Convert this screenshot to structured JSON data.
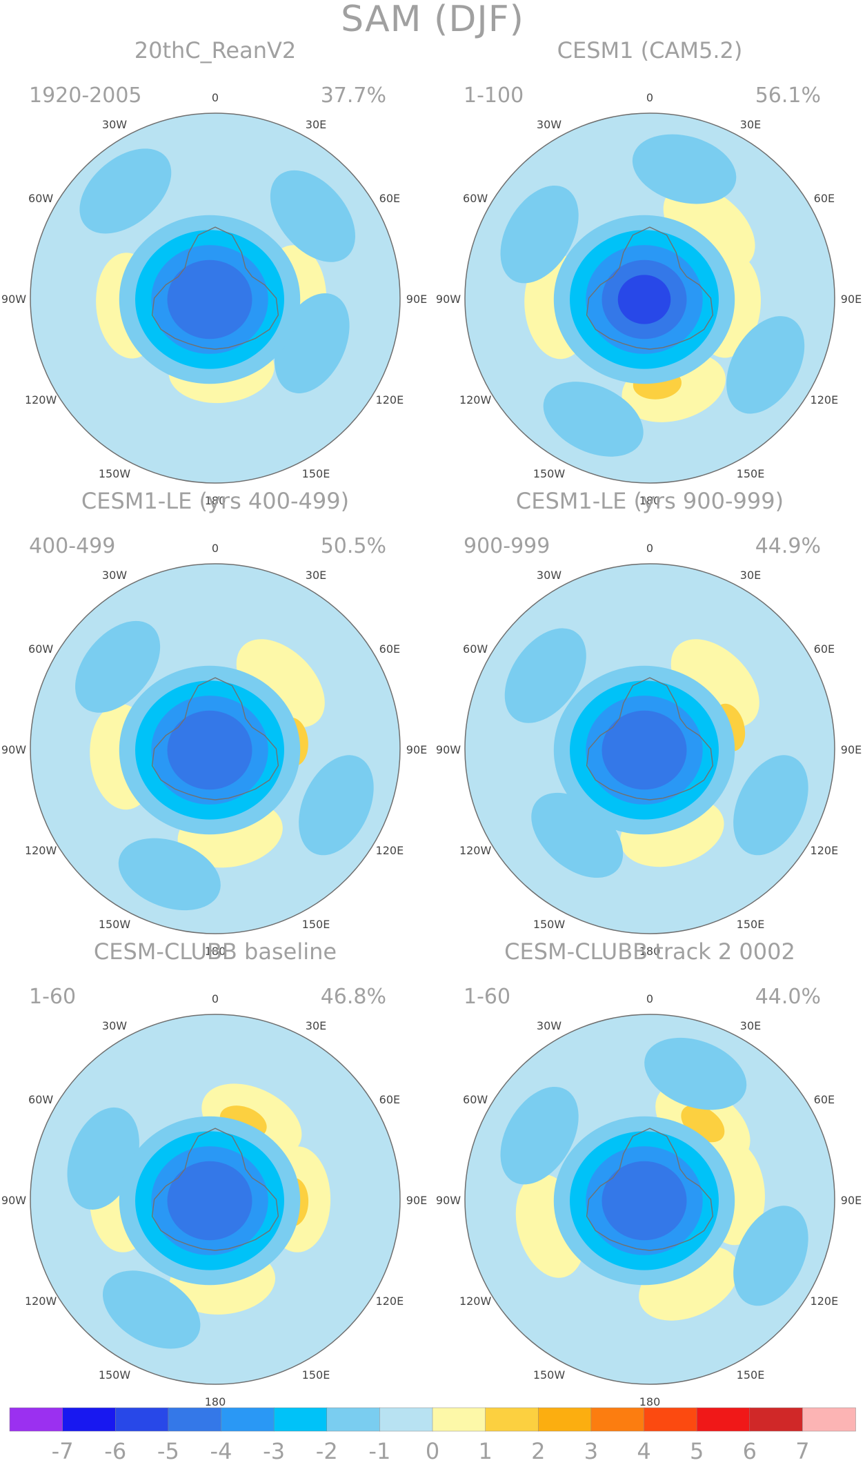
{
  "title": "SAM (DJF)",
  "colors": {
    "text": "#a0a0a0",
    "coast": "#707070",
    "border": "#6e6e6e"
  },
  "meridian_labels": [
    "0",
    "30E",
    "60E",
    "90E",
    "120E",
    "150E",
    "180",
    "150W",
    "120W",
    "90W",
    "60W",
    "30W"
  ],
  "panels": [
    {
      "name": "20thC_ReanV2",
      "period": "1920-2005",
      "variance": "37.7%",
      "core_value": -4,
      "features": [
        {
          "value": 1,
          "lon": 90,
          "lat": -52
        },
        {
          "value": 1,
          "lon": -95,
          "lat": -48
        },
        {
          "value": 1,
          "lon": 175,
          "lat": -55
        },
        {
          "value": -1,
          "lon": 50,
          "lat": -28
        },
        {
          "value": -1,
          "lon": 115,
          "lat": -38
        },
        {
          "value": -1,
          "lon": -40,
          "lat": -22
        }
      ]
    },
    {
      "name": "CESM1 (CAM5.2)",
      "period": "1-100",
      "variance": "56.1%",
      "core_value": -5,
      "features": [
        {
          "value": 1,
          "lon": 40,
          "lat": -45
        },
        {
          "value": 2,
          "lon": 85,
          "lat": -50
        },
        {
          "value": 1,
          "lon": 95,
          "lat": -52
        },
        {
          "value": 1,
          "lon": 165,
          "lat": -45
        },
        {
          "value": 2,
          "lon": 175,
          "lat": -48
        },
        {
          "value": 1,
          "lon": -95,
          "lat": -45
        },
        {
          "value": -1,
          "lon": 120,
          "lat": -25
        },
        {
          "value": -1,
          "lon": -155,
          "lat": -25
        },
        {
          "value": -1,
          "lon": -60,
          "lat": -28
        },
        {
          "value": -1,
          "lon": 15,
          "lat": -25
        }
      ]
    },
    {
      "name": "CESM1-LE (yrs 400-499)",
      "period": "400-499",
      "variance": "50.5%",
      "core_value": -4,
      "features": [
        {
          "value": 1,
          "lon": 45,
          "lat": -45
        },
        {
          "value": 2,
          "lon": 85,
          "lat": -52
        },
        {
          "value": 1,
          "lon": 170,
          "lat": -48
        },
        {
          "value": 1,
          "lon": -95,
          "lat": -45
        },
        {
          "value": -1,
          "lon": 115,
          "lat": -25
        },
        {
          "value": -1,
          "lon": -160,
          "lat": -25
        },
        {
          "value": -1,
          "lon": -50,
          "lat": -28
        }
      ]
    },
    {
      "name": "CESM1-LE (yrs 900-999)",
      "period": "900-999",
      "variance": "44.9%",
      "core_value": -4,
      "features": [
        {
          "value": 1,
          "lon": 45,
          "lat": -45
        },
        {
          "value": 2,
          "lon": 75,
          "lat": -50
        },
        {
          "value": 1,
          "lon": 165,
          "lat": -48
        },
        {
          "value": -1,
          "lon": 115,
          "lat": -25
        },
        {
          "value": -1,
          "lon": -140,
          "lat": -35
        },
        {
          "value": -1,
          "lon": -55,
          "lat": -28
        }
      ]
    },
    {
      "name": "CESM-CLUBB baseline",
      "period": "1-60",
      "variance": "46.8%",
      "core_value": -4,
      "features": [
        {
          "value": 1,
          "lon": 25,
          "lat": -48
        },
        {
          "value": 2,
          "lon": 20,
          "lat": -50
        },
        {
          "value": 1,
          "lon": 90,
          "lat": -50
        },
        {
          "value": 2,
          "lon": 92,
          "lat": -52
        },
        {
          "value": 1,
          "lon": 175,
          "lat": -50
        },
        {
          "value": 1,
          "lon": -90,
          "lat": -45
        },
        {
          "value": -1,
          "lon": -150,
          "lat": -28
        },
        {
          "value": -1,
          "lon": -70,
          "lat": -32
        }
      ]
    },
    {
      "name": "CESM-CLUBB track 2 0002",
      "period": "1-60",
      "variance": "44.0%",
      "core_value": -4,
      "features": [
        {
          "value": 1,
          "lon": 35,
          "lat": -45
        },
        {
          "value": 2,
          "lon": 35,
          "lat": -45
        },
        {
          "value": 1,
          "lon": 85,
          "lat": -50
        },
        {
          "value": 1,
          "lon": 155,
          "lat": -45
        },
        {
          "value": 1,
          "lon": -105,
          "lat": -40
        },
        {
          "value": -1,
          "lon": 115,
          "lat": -25
        },
        {
          "value": -1,
          "lon": 20,
          "lat": -25
        },
        {
          "value": -1,
          "lon": -60,
          "lat": -28
        }
      ]
    }
  ],
  "colorbar": {
    "labels": [
      "-7",
      "-6",
      "-5",
      "-4",
      "-3",
      "-2",
      "-1",
      "0",
      "1",
      "2",
      "3",
      "4",
      "5",
      "6",
      "7"
    ],
    "colors": [
      "#9b30f0",
      "#1818f0",
      "#2848e8",
      "#3478e8",
      "#2a98f5",
      "#00c2f8",
      "#7acdf0",
      "#b8e2f2",
      "#fdf8a8",
      "#fcd040",
      "#fcae10",
      "#fc7d10",
      "#fc4a10",
      "#f01818",
      "#d02828",
      "#fcb4b4"
    ]
  }
}
